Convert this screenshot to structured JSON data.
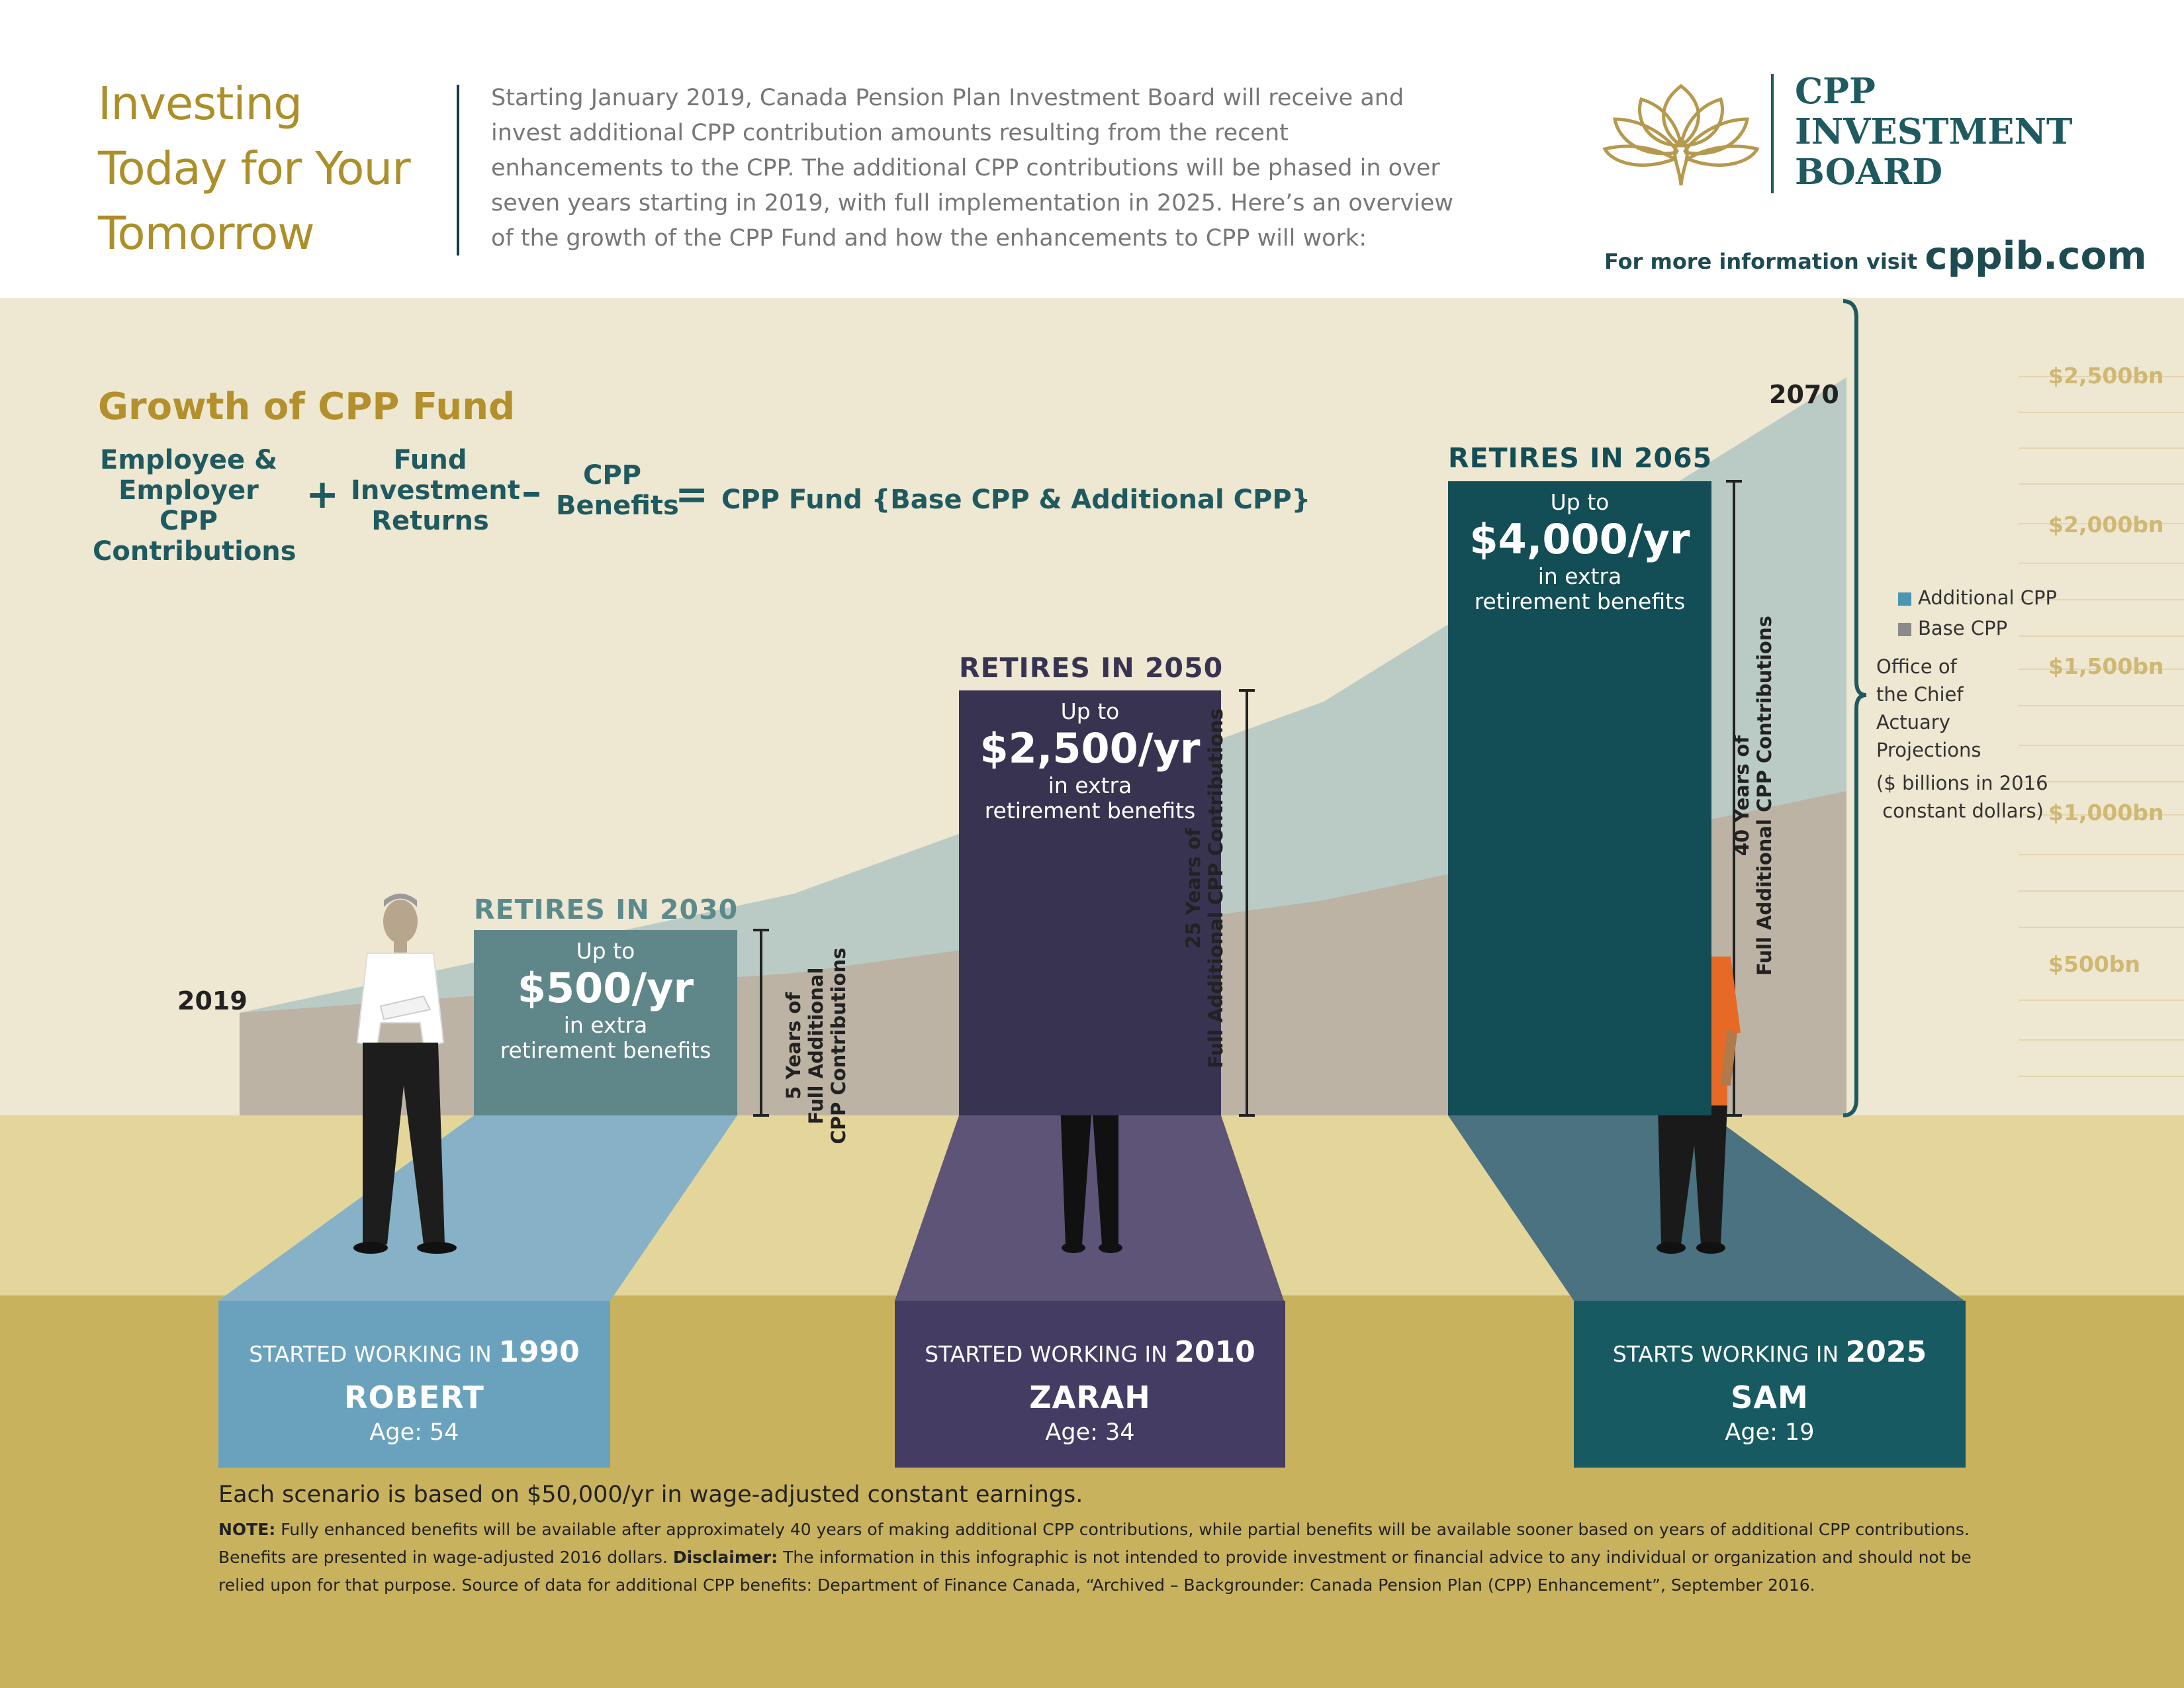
{
  "header": {
    "title_lines": [
      "Investing",
      "Today for Your",
      "Tomorrow"
    ],
    "intro": "Starting January 2019, Canada Pension Plan Investment Board will receive and invest additional CPP contribution amounts resulting from the recent enhancements to the CPP. The additional CPP contributions will be phased in over seven years starting in 2019, with full implementation in 2025. Here’s an overview of the growth of the CPP Fund and how the enhancements to CPP will work:",
    "logo_lines": [
      "CPP",
      "INVESTMENT",
      "BOARD"
    ],
    "info_prefix": "For more information visit",
    "info_url": "cppib.com"
  },
  "growth": {
    "title": "Growth of CPP Fund",
    "term1": [
      "Employee &",
      "Employer CPP",
      "Contributions"
    ],
    "op1": "+",
    "term2": [
      "Fund",
      "Investment",
      "Returns"
    ],
    "op2": "–",
    "term3": [
      "CPP",
      "Benefits"
    ],
    "op3": "=",
    "result": "CPP Fund {Base CPP & Additional CPP}"
  },
  "chart_data": {
    "type": "area",
    "x_start_label": "2019",
    "x_end_label": "2070",
    "y_ticks": [
      "$2,500bn",
      "$2,000bn",
      "$1,500bn",
      "$1,000bn",
      "$500bn"
    ],
    "series": [
      {
        "name": "Additional CPP",
        "color": "#b9cbc4"
      },
      {
        "name": "Base CPP",
        "color": "#bcb3a5"
      }
    ],
    "note_lines": [
      "Office of",
      "the Chief",
      "Actuary",
      "Projections"
    ],
    "units_lines": [
      "($ billions in 2016",
      " constant dollars)"
    ]
  },
  "scenarios": [
    {
      "retire_title": "RETIRES IN 2030",
      "upto": "Up to",
      "amount": "$500/yr",
      "sub_lines": [
        "in extra",
        "retirement benefits"
      ],
      "years_lines": [
        "5 Years of",
        "Full Additional",
        "CPP Contributions"
      ],
      "started_prefix": "STARTED WORKING IN",
      "started_year": "1990",
      "name": "ROBERT",
      "age": "Age: 54",
      "color": "#5f8689",
      "card_color": "#6aa2bd"
    },
    {
      "retire_title": "RETIRES IN 2050",
      "upto": "Up to",
      "amount": "$2,500/yr",
      "sub_lines": [
        "in extra",
        "retirement benefits"
      ],
      "years_lines": [
        "25 Years of",
        "Full Additional CPP Contributions"
      ],
      "started_prefix": "STARTED WORKING IN",
      "started_year": "2010",
      "name": "ZARAH",
      "age": "Age: 34",
      "color": "#373351",
      "card_color": "#443c63"
    },
    {
      "retire_title": "RETIRES IN 2065",
      "upto": "Up to",
      "amount": "$4,000/yr",
      "sub_lines": [
        "in extra",
        "retirement benefits"
      ],
      "years_lines": [
        "40 Years of",
        "Full Additional CPP Contributions"
      ],
      "started_prefix": "STARTS WORKING IN",
      "started_year": "2025",
      "name": "SAM",
      "age": "Age: 19",
      "color": "#134d55",
      "card_color": "#175a62"
    }
  ],
  "footer": {
    "main": "Each scenario is based on $50,000/yr in wage-adjusted constant earnings.",
    "note_label": "NOTE:",
    "note_text": " Fully enhanced benefits will be available after approximately 40 years of making additional CPP contributions, while partial benefits will be available sooner based on years of additional CPP contributions. Benefits are presented in wage-adjusted 2016 dollars. ",
    "disclaimer_label": "Disclaimer:",
    "disclaimer_text": " The information in this infographic is not intended to provide investment or financial advice to any individual or organization and should not be relied upon for that purpose. Source of data for additional CPP benefits: Department of Finance Canada, “Archived – Backgrounder: Canada Pension Plan (CPP) Enhancement”, September 2016."
  },
  "colors": {
    "gold": "#ad8f2a",
    "teal_dark": "#1e5a60",
    "cream": "#eee7d1"
  }
}
